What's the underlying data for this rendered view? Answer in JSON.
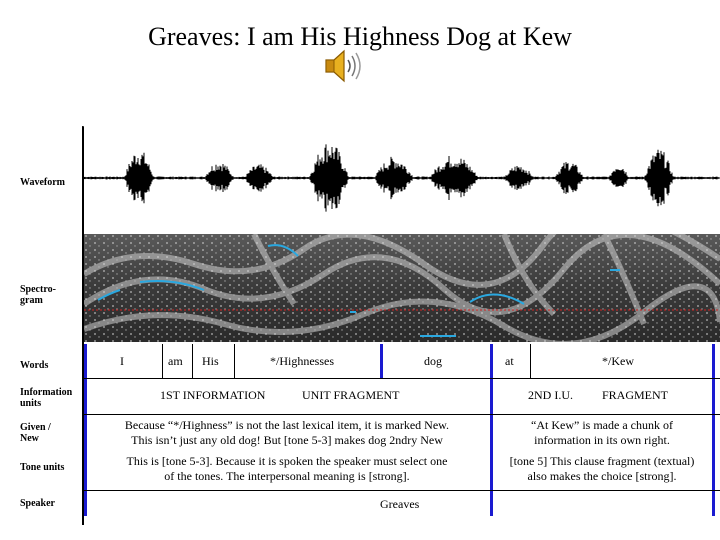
{
  "title": "Greaves: I am His Highness Dog at Kew",
  "labels": {
    "waveform": "Waveform",
    "spectrogram": "Spectro-\ngram",
    "words": "Words",
    "information_units": "Information\nunits",
    "given_new": "Given /\nNew",
    "tone_units": "Tone units",
    "speaker": "Speaker"
  },
  "words": [
    "I",
    "am",
    "His",
    "*/Highnesses",
    "dog",
    "at",
    "*/Kew"
  ],
  "info_units": {
    "first_a": "1ST INFORMATION",
    "first_b": "UNIT FRAGMENT",
    "second_a": "2ND I.U.",
    "second_b": "FRAGMENT"
  },
  "given_new": {
    "left_line1": "Because “*/Highness” is not the last lexical item, it is marked New.",
    "left_line2": "This isn’t just any old dog! But [tone 5-3] makes dog 2ndry New",
    "right_line1": "“At Kew” is made a chunk of",
    "right_line2": "information in its own right."
  },
  "tone_units": {
    "left_line1": "This is [tone 5-3]. Because it is spoken the speaker must select one",
    "left_line2": "of the tones. The interpersonal meaning is [strong].",
    "right_line1": "[tone 5] This clause fragment (textual)",
    "right_line2": "also makes the choice [strong]."
  },
  "speaker": "Greaves",
  "icons": [
    "speaker-audio-icon"
  ]
}
